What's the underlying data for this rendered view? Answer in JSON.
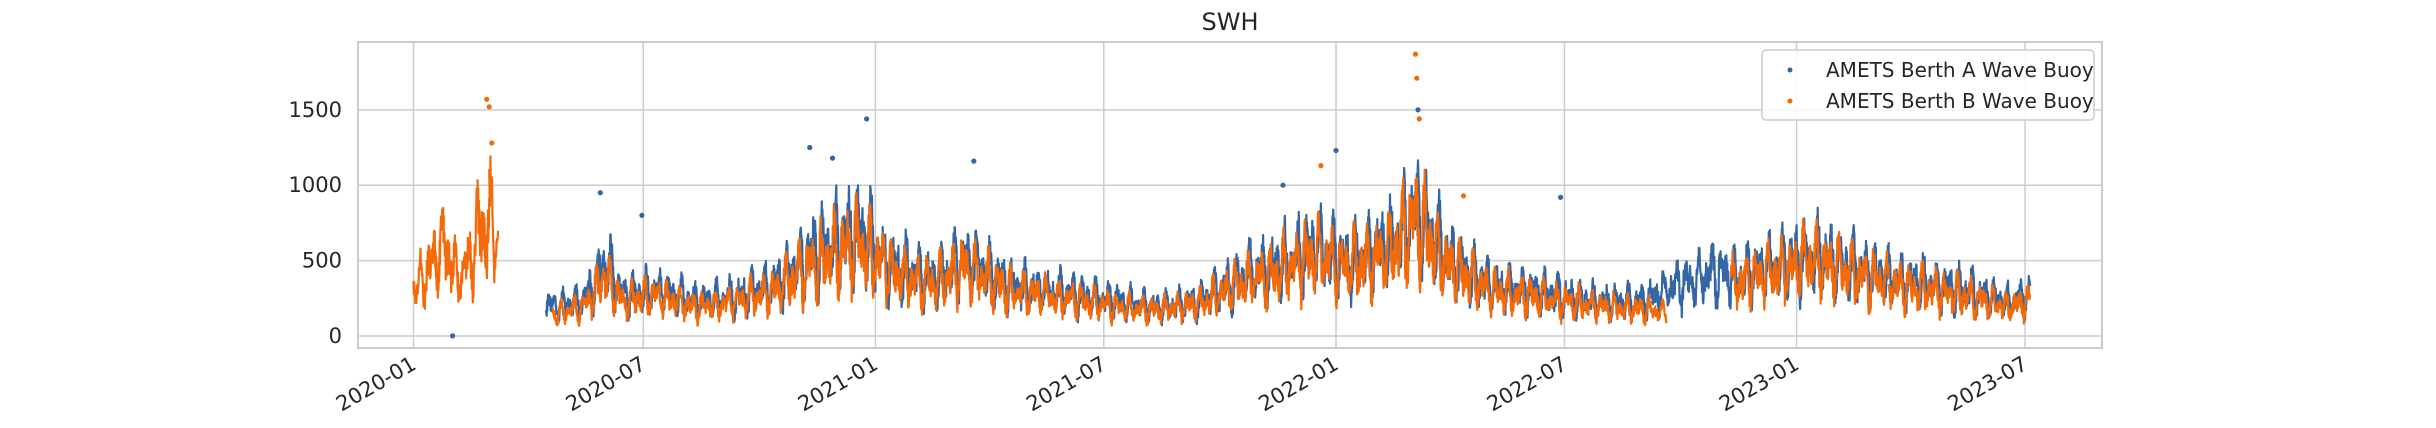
{
  "chart_data": {
    "type": "scatter",
    "title": "SWH",
    "xlabel": "",
    "ylabel": "",
    "grid": true,
    "legend_placement": "top-right",
    "xlim": [
      "2019-11-18",
      "2023-08-31"
    ],
    "ylim": [
      -80,
      1950
    ],
    "x_ticks": [
      "2020-01",
      "2020-07",
      "2021-01",
      "2021-07",
      "2022-01",
      "2022-07",
      "2023-01",
      "2023-07"
    ],
    "y_ticks": [
      0,
      500,
      1000,
      1500
    ],
    "colors": {
      "berth_a": "#3465a4",
      "berth_b": "#f46a08"
    },
    "series": [
      {
        "name": "AMETS Berth A Wave Buoy",
        "color": "#3465a4",
        "segments": [
          {
            "points": [
              [
                "2020-04-15",
                250
              ],
              [
                "2020-05-15",
                300
              ],
              [
                "2020-06-01",
                650
              ],
              [
                "2020-06-15",
                350
              ],
              [
                "2020-07-10",
                400
              ],
              [
                "2020-08-15",
                300
              ],
              [
                "2020-09-15",
                350
              ],
              [
                "2020-10-15",
                450
              ],
              [
                "2020-11-10",
                700
              ],
              [
                "2020-11-25",
                800
              ],
              [
                "2020-12-20",
                900
              ],
              [
                "2021-01-15",
                600
              ],
              [
                "2021-02-15",
                500
              ],
              [
                "2021-03-15",
                650
              ],
              [
                "2021-04-15",
                450
              ],
              [
                "2021-05-15",
                400
              ],
              [
                "2021-06-15",
                350
              ],
              [
                "2021-07-15",
                300
              ],
              [
                "2021-08-15",
                250
              ],
              [
                "2021-09-15",
                300
              ],
              [
                "2021-10-15",
                500
              ],
              [
                "2021-11-15",
                600
              ],
              [
                "2021-12-15",
                750
              ],
              [
                "2022-01-10",
                650
              ],
              [
                "2022-02-15",
                800
              ],
              [
                "2022-03-05",
                1100
              ],
              [
                "2022-04-01",
                650
              ],
              [
                "2022-05-01",
                450
              ],
              [
                "2022-06-01",
                400
              ],
              [
                "2022-07-01",
                350
              ],
              [
                "2022-08-01",
                300
              ],
              [
                "2022-09-01",
                300
              ],
              [
                "2022-10-01",
                450
              ],
              [
                "2022-10-25",
                550
              ],
              [
                "2022-11-15",
                500
              ],
              [
                "2022-12-15",
                600
              ],
              [
                "2023-01-15",
                700
              ],
              [
                "2023-02-15",
                600
              ],
              [
                "2023-03-15",
                500
              ],
              [
                "2023-04-15",
                450
              ],
              [
                "2023-05-15",
                400
              ],
              [
                "2023-06-15",
                300
              ],
              [
                "2023-07-05",
                350
              ]
            ]
          }
        ],
        "outliers": [
          [
            "2020-02-01",
            0
          ],
          [
            "2020-05-28",
            950
          ],
          [
            "2020-06-30",
            800
          ],
          [
            "2020-11-10",
            1250
          ],
          [
            "2020-11-28",
            1180
          ],
          [
            "2020-12-25",
            1440
          ],
          [
            "2021-03-20",
            1160
          ],
          [
            "2021-11-20",
            1000
          ],
          [
            "2022-01-01",
            1230
          ],
          [
            "2022-03-07",
            1500
          ],
          [
            "2022-06-28",
            920
          ]
        ]
      },
      {
        "name": "AMETS Berth B Wave Buoy",
        "color": "#f46a08",
        "segments": [
          {
            "points": [
              [
                "2020-01-01",
                400
              ],
              [
                "2020-01-15",
                600
              ],
              [
                "2020-01-25",
                800
              ],
              [
                "2020-02-05",
                500
              ],
              [
                "2020-02-15",
                650
              ],
              [
                "2020-02-22",
                900
              ],
              [
                "2020-03-01",
                1000
              ],
              [
                "2020-03-08",
                750
              ]
            ]
          },
          {
            "points": [
              [
                "2020-04-20",
                180
              ],
              [
                "2020-05-15",
                250
              ],
              [
                "2020-06-01",
                500
              ],
              [
                "2020-06-15",
                300
              ],
              [
                "2020-07-10",
                350
              ],
              [
                "2020-08-15",
                250
              ],
              [
                "2020-09-15",
                300
              ],
              [
                "2020-10-15",
                400
              ],
              [
                "2020-11-10",
                600
              ],
              [
                "2020-11-25",
                700
              ],
              [
                "2020-12-20",
                800
              ],
              [
                "2021-01-15",
                550
              ],
              [
                "2021-02-15",
                450
              ],
              [
                "2021-03-15",
                600
              ],
              [
                "2021-04-15",
                400
              ],
              [
                "2021-05-15",
                350
              ],
              [
                "2021-06-15",
                300
              ],
              [
                "2021-07-15",
                250
              ],
              [
                "2021-08-15",
                220
              ],
              [
                "2021-09-15",
                280
              ],
              [
                "2021-10-15",
                450
              ],
              [
                "2021-11-15",
                550
              ],
              [
                "2021-12-15",
                700
              ],
              [
                "2022-01-10",
                600
              ],
              [
                "2022-02-15",
                750
              ],
              [
                "2022-03-05",
                1000
              ],
              [
                "2022-04-01",
                600
              ],
              [
                "2022-05-01",
                400
              ],
              [
                "2022-06-01",
                350
              ],
              [
                "2022-07-01",
                300
              ],
              [
                "2022-08-01",
                250
              ],
              [
                "2022-09-01",
                230
              ],
              [
                "2022-09-20",
                200
              ]
            ]
          },
          {
            "points": [
              [
                "2022-11-10",
                450
              ],
              [
                "2022-12-15",
                550
              ],
              [
                "2023-01-15",
                650
              ],
              [
                "2023-02-15",
                550
              ],
              [
                "2023-03-15",
                450
              ],
              [
                "2023-04-15",
                400
              ],
              [
                "2023-05-15",
                350
              ],
              [
                "2023-06-15",
                250
              ],
              [
                "2023-07-05",
                300
              ]
            ]
          }
        ],
        "outliers": [
          [
            "2020-02-28",
            1570
          ],
          [
            "2020-03-01",
            1520
          ],
          [
            "2020-03-03",
            1280
          ],
          [
            "2021-12-20",
            1130
          ],
          [
            "2022-03-05",
            1870
          ],
          [
            "2022-03-06",
            1710
          ],
          [
            "2022-03-08",
            1440
          ],
          [
            "2022-04-12",
            930
          ]
        ]
      }
    ]
  }
}
